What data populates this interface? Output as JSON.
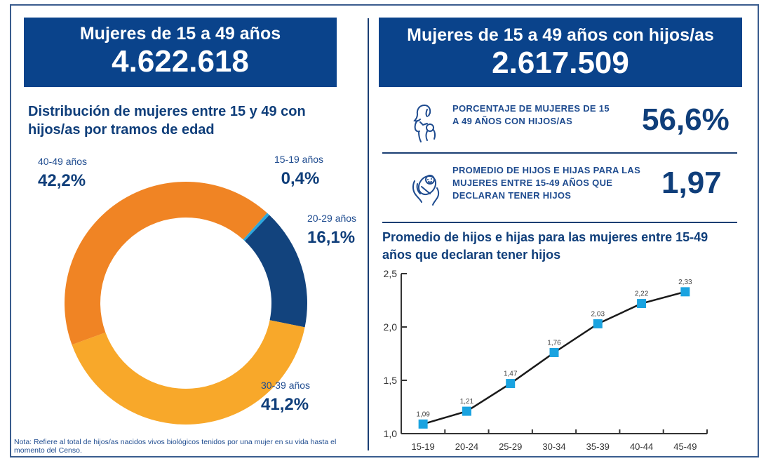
{
  "left": {
    "banner": {
      "title": "Mujeres de 15 a 49 años",
      "value": "4.622.618"
    },
    "donut_title": "Distribución de mujeres entre 15 y 49 con hijos/as por tramos de edad",
    "note": "Nota: Refiere al total de hijos/as nacidos vivos biológicos tenidos por una mujer en su vida hasta el momento del Censo."
  },
  "right": {
    "banner": {
      "title": "Mujeres de 15 a 49 años con hijos/as",
      "value": "2.617.509"
    },
    "kpis": [
      {
        "icon": "mother-with-baby-icon",
        "label": "PORCENTAJE DE MUJERES DE 15 A 49 AÑOS CON HIJOS/AS",
        "value": "56,6%"
      },
      {
        "icon": "hands-holding-baby-icon",
        "label": "PROMEDIO DE HIJOS E HIJAS PARA LAS MUJERES ENTRE 15-49 AÑOS QUE DECLARAN TENER HIJOS",
        "value": "1,97"
      }
    ],
    "chart_title": "Promedio de hijos e hijas para las mujeres entre 15-49 años que declaran tener hijos"
  },
  "colors": {
    "brand": "#0a438b",
    "text": "#0f3e7a",
    "c1519": "#2aa7de",
    "c2029": "#12437d",
    "c3039": "#f8a82a",
    "c4049": "#f08424",
    "marker": "#1aa3e0"
  },
  "chart_data": [
    {
      "type": "pie",
      "title": "Distribución de mujeres entre 15 y 49 con hijos/as por tramos de edad",
      "donut": true,
      "categories": [
        "15-19 años",
        "20-29 años",
        "30-39 años",
        "40-49 años"
      ],
      "values": [
        0.4,
        16.1,
        41.2,
        42.2
      ],
      "labels": [
        "0,4%",
        "16,1%",
        "41,2%",
        "42,2%"
      ]
    },
    {
      "type": "line",
      "title": "Promedio de hijos e hijas para las mujeres entre 15-49 años que declaran tener hijos",
      "categories": [
        "15-19",
        "20-24",
        "25-29",
        "30-34",
        "35-39",
        "40-44",
        "45-49"
      ],
      "values": [
        1.09,
        1.21,
        1.47,
        1.76,
        2.03,
        2.22,
        2.33
      ],
      "value_labels": [
        "1,09",
        "1,21",
        "1,47",
        "1,76",
        "2,03",
        "2,22",
        "2,33"
      ],
      "ylim": [
        1.0,
        2.5
      ],
      "yticks": [
        1.0,
        1.5,
        2.0,
        2.5
      ],
      "ytick_labels": [
        "1,0",
        "1,5",
        "2,0",
        "2,5"
      ],
      "xlabel": "",
      "ylabel": "",
      "grid": false
    }
  ]
}
